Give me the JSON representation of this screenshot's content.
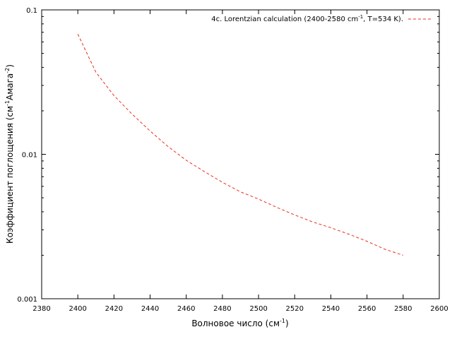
{
  "chart_data": {
    "type": "line",
    "xlabel": "Волновое число (см",
    "xlabel_sup": "-1",
    "xlabel_end": ")",
    "ylabel_a": "Коэффициент поглощения (см",
    "ylabel_sup1": "-1",
    "ylabel_b": "Амага",
    "ylabel_sup2": "-2",
    "ylabel_c": ")",
    "xlim": [
      2380,
      2600
    ],
    "ylim": [
      0.001,
      0.1
    ],
    "yscale": "log",
    "grid": false,
    "legend_position": "top-right",
    "x_ticks": [
      2380,
      2400,
      2420,
      2440,
      2460,
      2480,
      2500,
      2520,
      2540,
      2560,
      2580,
      2600
    ],
    "x_tick_labels": [
      "2380",
      "2400",
      "2420",
      "2440",
      "2460",
      "2480",
      "2500",
      "2520",
      "2540",
      "2560",
      "2580",
      "2600"
    ],
    "y_ticks": [
      0.001,
      0.01,
      0.1
    ],
    "y_tick_labels": [
      "0.001",
      "0.01",
      "0.1"
    ],
    "series": [
      {
        "name": "4c. Lorentzian calculation (2400-2580 cm",
        "name_sup": "-1",
        "name_end": ", T=534 K).",
        "color": "#e8301e",
        "style": "dashed",
        "x": [
          2400,
          2410,
          2420,
          2430,
          2440,
          2450,
          2460,
          2470,
          2480,
          2490,
          2500,
          2510,
          2520,
          2530,
          2540,
          2550,
          2560,
          2570,
          2580
        ],
        "y": [
          0.068,
          0.037,
          0.0255,
          0.019,
          0.0145,
          0.0113,
          0.0091,
          0.0076,
          0.0064,
          0.0055,
          0.0049,
          0.0043,
          0.0038,
          0.0034,
          0.0031,
          0.0028,
          0.0025,
          0.0022,
          0.002
        ]
      }
    ]
  }
}
